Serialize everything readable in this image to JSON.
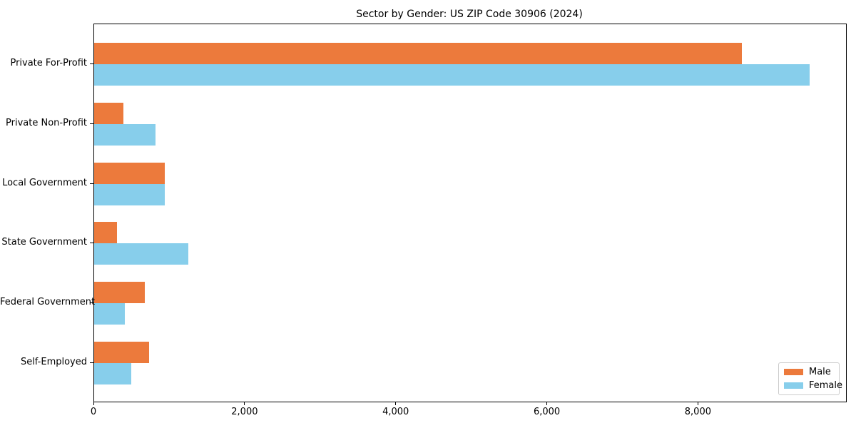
{
  "chart_data": {
    "type": "bar",
    "orientation": "horizontal",
    "title": "Sector by Gender: US ZIP Code 30906 (2024)",
    "categories": [
      "Private For-Profit",
      "Private Non-Profit",
      "Local Government",
      "State Government",
      "Federal Government",
      "Self-Employed"
    ],
    "series": [
      {
        "name": "Male",
        "color": "#ec7a3c",
        "values": [
          8570,
          390,
          935,
          300,
          670,
          725
        ]
      },
      {
        "name": "Female",
        "color": "#87ceeb",
        "values": [
          9470,
          810,
          935,
          1245,
          405,
          490
        ]
      }
    ],
    "xlabel": "",
    "ylabel": "",
    "x_ticks": [
      0,
      2000,
      4000,
      6000,
      8000
    ],
    "x_tick_labels": [
      "0",
      "2,000",
      "4,000",
      "6,000",
      "8,000"
    ],
    "xlim": [
      0,
      9950
    ],
    "grid": false,
    "legend_position": "lower-right",
    "legend_entries": [
      "Male",
      "Female"
    ],
    "spine_color": "#000000",
    "background_color": "#ffffff"
  }
}
